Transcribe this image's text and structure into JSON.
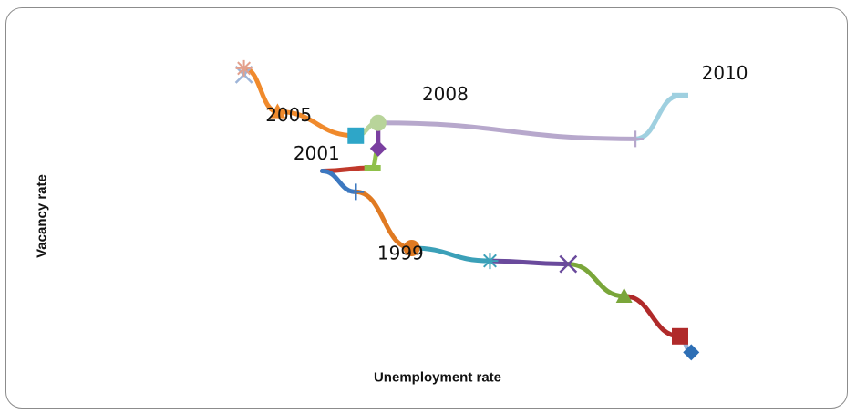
{
  "chart_data": {
    "type": "line",
    "title": "",
    "xlabel": "Unemployment rate",
    "ylabel": "Vacancy rate",
    "grid": false,
    "legend": "none",
    "points": [
      {
        "x": 3.1,
        "y": 5.08,
        "marker": "x",
        "color": "#9db4d8"
      },
      {
        "x": 3.1,
        "y": 5.12,
        "marker": "star",
        "color": "#e3a08c"
      },
      {
        "x": 3.4,
        "y": 4.85,
        "marker": "triangle",
        "color": "#f08a2c"
      },
      {
        "x": 4.1,
        "y": 4.7,
        "marker": "square",
        "color": "#2ea6c8"
      },
      {
        "x": 4.3,
        "y": 4.78,
        "marker": "circle",
        "color": "#b8d49a"
      },
      {
        "x": 4.3,
        "y": 4.62,
        "marker": "diamond",
        "color": "#7a3fa0"
      },
      {
        "x": 4.25,
        "y": 4.5,
        "marker": "dash",
        "color": "#8fc04a"
      },
      {
        "x": 3.8,
        "y": 4.48,
        "marker": "none",
        "color": "#c0392b"
      },
      {
        "x": 4.1,
        "y": 4.35,
        "marker": "plus",
        "color": "#3c78c0"
      },
      {
        "x": 4.6,
        "y": 4.0,
        "marker": "circle",
        "color": "#e07a22"
      },
      {
        "x": 5.3,
        "y": 3.92,
        "marker": "star",
        "color": "#3ba0b8"
      },
      {
        "x": 6.0,
        "y": 3.9,
        "marker": "x",
        "color": "#6a4a9c"
      },
      {
        "x": 6.5,
        "y": 3.7,
        "marker": "triangle",
        "color": "#7aa63a"
      },
      {
        "x": 7.0,
        "y": 3.45,
        "marker": "square",
        "color": "#b02a2a"
      },
      {
        "x": 7.1,
        "y": 3.35,
        "marker": "diamond",
        "color": "#2e6fb5"
      }
    ],
    "top_branch": [
      {
        "x": 4.3,
        "y": 4.78
      },
      {
        "x": 6.6,
        "y": 4.68,
        "marker": "plus",
        "color": "#b7a8cc"
      },
      {
        "x": 7.0,
        "y": 4.95,
        "marker": "dash",
        "color": "#9fd0e0"
      }
    ],
    "segment_colors": [
      "#9db4d8",
      "#f08a2c",
      "#f08a2c",
      "#b8d49a",
      "#7a3fa0",
      "#8fc04a",
      "#c0392b",
      "#3c78c0",
      "#e07a22",
      "#3ba0b8",
      "#6a4a9c",
      "#7aa63a",
      "#b02a2a"
    ],
    "branch_colors": [
      "#b7a8cc",
      "#9fd0e0"
    ],
    "year_labels": [
      {
        "text": "2010",
        "x": 7.4,
        "y": 5.05
      },
      {
        "text": "2008",
        "x": 4.9,
        "y": 4.92
      },
      {
        "text": "2005",
        "x": 3.5,
        "y": 4.79
      },
      {
        "text": "2001",
        "x": 3.75,
        "y": 4.55
      },
      {
        "text": "1999",
        "x": 4.5,
        "y": 3.93
      }
    ],
    "xlim": [
      1.0,
      8.5
    ],
    "ylim": [
      3.0,
      5.5
    ]
  }
}
